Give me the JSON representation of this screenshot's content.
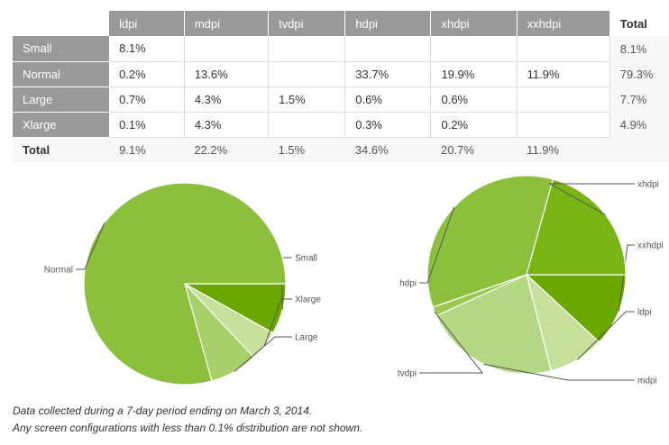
{
  "chart_data": [
    {
      "type": "table",
      "columns": [
        "ldpi",
        "mdpi",
        "tvdpi",
        "hdpi",
        "xhdpi",
        "xxhdpi",
        "Total"
      ],
      "rows": [
        {
          "label": "Small",
          "cells": [
            "8.1%",
            "",
            "",
            "",
            "",
            "",
            "8.1%"
          ]
        },
        {
          "label": "Normal",
          "cells": [
            "0.2%",
            "13.6%",
            "",
            "33.7%",
            "19.9%",
            "11.9%",
            "79.3%"
          ]
        },
        {
          "label": "Large",
          "cells": [
            "0.7%",
            "4.3%",
            "1.5%",
            "0.6%",
            "0.6%",
            "",
            "7.7%"
          ]
        },
        {
          "label": "Xlarge",
          "cells": [
            "0.1%",
            "4.3%",
            "",
            "0.3%",
            "0.2%",
            "",
            "4.9%"
          ]
        }
      ],
      "totals": {
        "label": "Total",
        "cells": [
          "9.1%",
          "22.2%",
          "1.5%",
          "34.6%",
          "20.7%",
          "11.9%"
        ]
      }
    },
    {
      "type": "pie",
      "slices": [
        {
          "label": "Small",
          "value": 8.1,
          "color": "#6aa800"
        },
        {
          "label": "Xlarge",
          "value": 4.9,
          "color": "#c6e09c"
        },
        {
          "label": "Large",
          "value": 7.7,
          "color": "#a7d06a"
        },
        {
          "label": "Normal",
          "value": 79.3,
          "color": "#8cc03c"
        }
      ]
    },
    {
      "type": "pie",
      "slices": [
        {
          "label": "xxhdpi",
          "value": 11.9,
          "color": "#6aa800"
        },
        {
          "label": "ldpi",
          "value": 9.1,
          "color": "#c6e09c"
        },
        {
          "label": "mdpi",
          "value": 22.2,
          "color": "#b3d783"
        },
        {
          "label": "tvdpi",
          "value": 1.5,
          "color": "#9bc84f"
        },
        {
          "label": "hdpi",
          "value": 34.6,
          "color": "#8cc03c"
        },
        {
          "label": "xhdpi",
          "value": 20.7,
          "color": "#78b414"
        }
      ]
    }
  ],
  "footnotes": {
    "line1": "Data collected during a 7-day period ending on March 3, 2014.",
    "line2": "Any screen configurations with less than 0.1% distribution are not shown."
  }
}
